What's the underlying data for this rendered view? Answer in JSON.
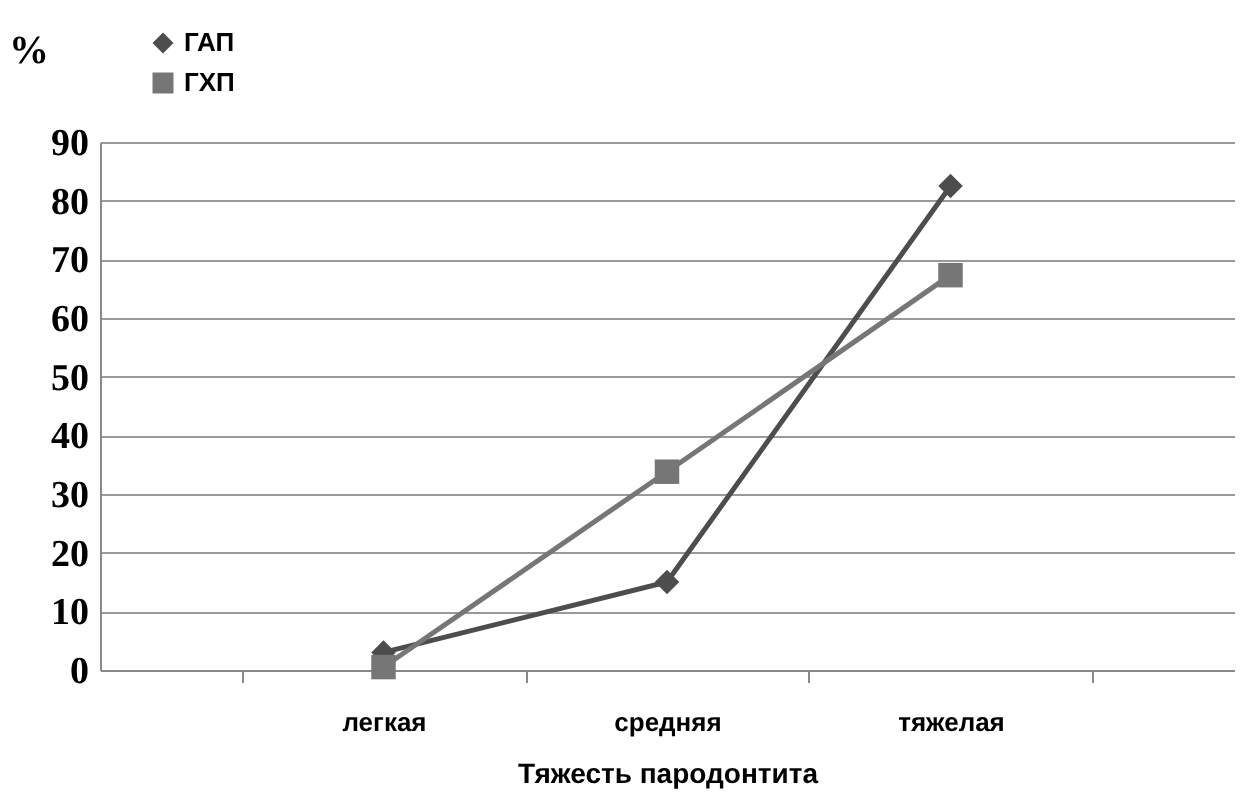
{
  "chart_data": {
    "type": "line",
    "xlabel": "Тяжесть пародонтита",
    "ylabel": "%",
    "categories": [
      "легкая",
      "средняя",
      "тяжелая"
    ],
    "series": [
      {
        "name": "ГАП",
        "color": "#4d4d4d",
        "marker": "diamond",
        "values": [
          3,
          15,
          82.5
        ]
      },
      {
        "name": "ГХП",
        "color": "#767676",
        "marker": "square",
        "values": [
          0.5,
          33.8,
          67.3
        ]
      }
    ],
    "ylim": [
      0,
      90
    ],
    "yticks": [
      0,
      10,
      20,
      30,
      40,
      50,
      60,
      70,
      80,
      90
    ],
    "grid": "y",
    "legend": "top left",
    "line_style": "solid"
  }
}
